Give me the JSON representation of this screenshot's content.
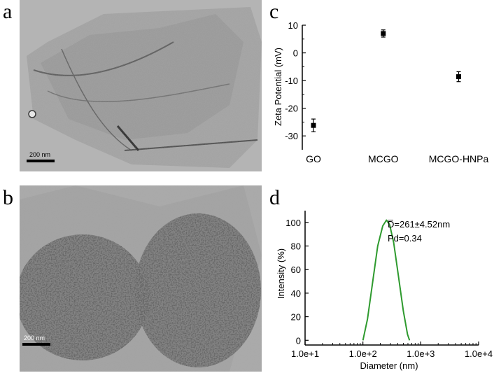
{
  "panels": {
    "a": {
      "letter": "a",
      "scalebar": "200 nm"
    },
    "b": {
      "letter": "b",
      "scalebar": "200 nm"
    },
    "c": {
      "letter": "c"
    },
    "d": {
      "letter": "d"
    }
  },
  "chart_data": [
    {
      "type": "scatter",
      "panel": "c",
      "categories": [
        "GO",
        "MCGO",
        "MCGO-HNPa"
      ],
      "values": [
        -26.2,
        7.0,
        -8.6
      ],
      "errors": [
        2.3,
        1.3,
        1.8
      ],
      "ylabel": "Zeta Potential (mV)",
      "xlabel": "",
      "ylim": [
        -35,
        10
      ],
      "yticks": [
        10,
        0,
        -10,
        -20,
        -30
      ],
      "grid": false,
      "marker_color": "#000000"
    },
    {
      "type": "line",
      "panel": "d",
      "xscale": "log",
      "xlim": [
        10,
        10000
      ],
      "ylim": [
        -4,
        110
      ],
      "xticks": [
        10,
        100,
        1000,
        10000
      ],
      "xtick_labels": [
        "1.0e+1",
        "1.0e+2",
        "1.0e+3",
        "1.0e+4"
      ],
      "yticks": [
        0,
        20,
        40,
        60,
        80,
        100
      ],
      "xlabel": "Diameter (nm)",
      "ylabel": "Intensity (%)",
      "annotations": [
        "D̅=261±4.52nm",
        "Pd=0.34"
      ],
      "series": [
        {
          "color": "#2e9a2e",
          "points": [
            [
              100,
              0
            ],
            [
              120,
              18
            ],
            [
              150,
              52
            ],
            [
              180,
              80
            ],
            [
              220,
              97
            ],
            [
              255,
              102
            ],
            [
              290,
              98
            ],
            [
              340,
              83
            ],
            [
              410,
              55
            ],
            [
              500,
              25
            ],
            [
              590,
              5
            ],
            [
              640,
              0
            ]
          ]
        }
      ],
      "grid": false
    }
  ]
}
